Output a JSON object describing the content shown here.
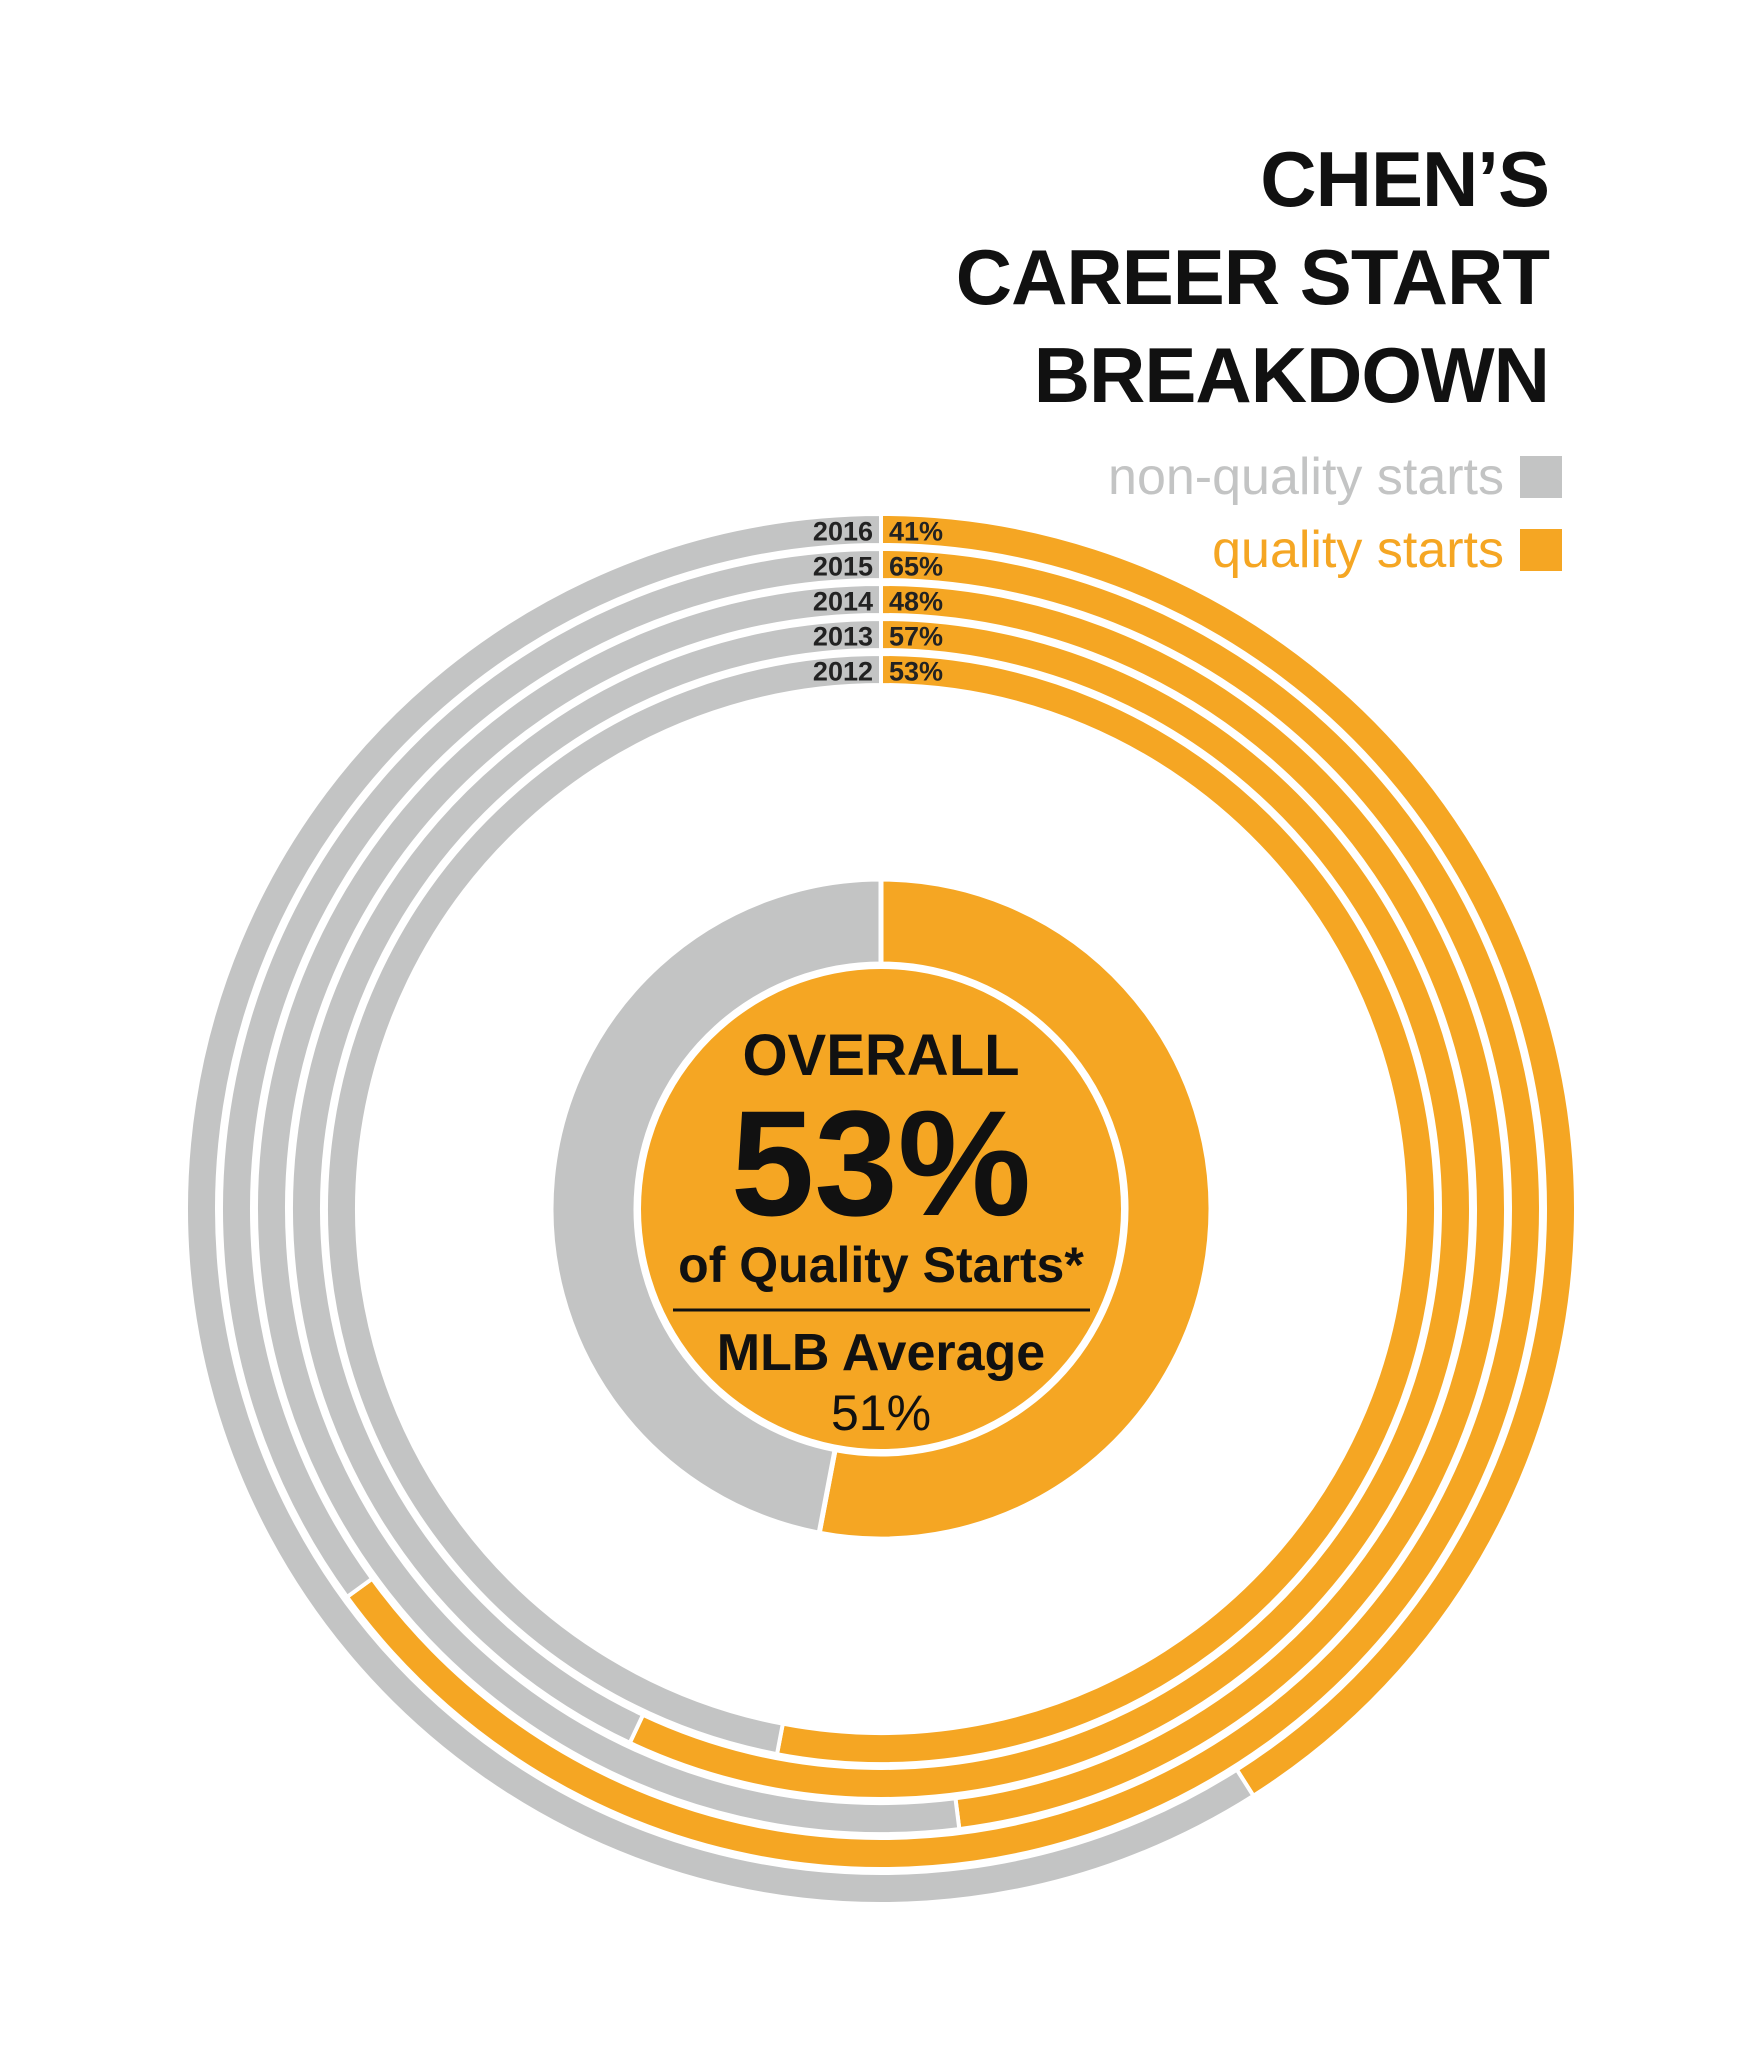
{
  "title_lines": [
    "CHEN’S",
    "CAREER START",
    "BREAKDOWN"
  ],
  "legend": {
    "non_quality": {
      "label": "non-quality starts",
      "color": "#c3c4c4"
    },
    "quality": {
      "label": "quality starts",
      "color": "#f5a623"
    }
  },
  "chart_data": {
    "type": "radial-bar",
    "title": "CHEN’S CAREER START BREAKDOWN",
    "series": [
      {
        "name": "quality starts",
        "color": "#f5a623"
      },
      {
        "name": "non-quality starts",
        "color": "#c3c4c4"
      }
    ],
    "rings": [
      {
        "year": "2016",
        "quality_pct": 41,
        "label": "41%"
      },
      {
        "year": "2015",
        "quality_pct": 65,
        "label": "65%"
      },
      {
        "year": "2014",
        "quality_pct": 48,
        "label": "48%"
      },
      {
        "year": "2013",
        "quality_pct": 57,
        "label": "57%"
      },
      {
        "year": "2012",
        "quality_pct": 53,
        "label": "53%"
      }
    ],
    "overall": {
      "quality_pct": 53,
      "heading": "OVERALL",
      "value_label": "53%",
      "subtitle": "of Quality Starts*",
      "mlb_label": "MLB Average",
      "mlb_value": "51%"
    }
  }
}
